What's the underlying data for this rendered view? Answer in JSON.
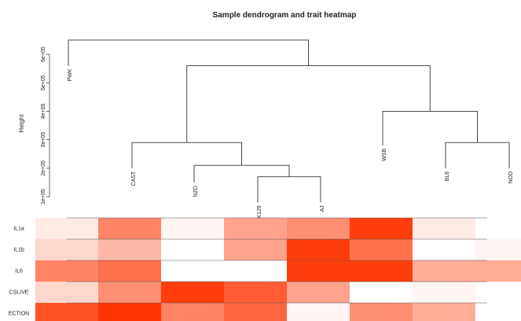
{
  "chart_data": {
    "type": "heatmap",
    "title": "Sample dendrogram and trait heatmap",
    "ylabel": "Height",
    "ylim": [
      100000,
      600000
    ],
    "yticks": [
      {
        "value": 100000,
        "label": "1e+05"
      },
      {
        "value": 200000,
        "label": "2e+05"
      },
      {
        "value": 300000,
        "label": "3e+05"
      },
      {
        "value": 400000,
        "label": "4e+05"
      },
      {
        "value": 500000,
        "label": "5e+05"
      },
      {
        "value": 600000,
        "label": "6e+05"
      }
    ],
    "samples": [
      "PWK",
      "CAST",
      "NZO",
      "X129",
      "AJ",
      "WSB",
      "BL6",
      "NOD"
    ],
    "leaf_heights": [
      560000,
      200000,
      150000,
      80000,
      80000,
      280000,
      200000,
      200000
    ],
    "merges": [
      {
        "a": 3,
        "b": 4,
        "height": 170000
      },
      {
        "a": 2,
        "b": 8,
        "height": 210000
      },
      {
        "a": 1,
        "b": 9,
        "height": 290000
      },
      {
        "a": 6,
        "b": 7,
        "height": 290000
      },
      {
        "a": 5,
        "b": 11,
        "height": 400000
      },
      {
        "a": 10,
        "b": 12,
        "height": 560000
      },
      {
        "a": 0,
        "b": 13,
        "height": 650000
      }
    ],
    "traits": [
      "IL1a",
      "IL1b",
      "IL6",
      "CSLIVE",
      "ECTION"
    ],
    "heat_colors": [
      "#ffffff",
      "#ff3300"
    ],
    "heat_values": [
      [
        0.1,
        0.6,
        0.05,
        0.45,
        0.55,
        0.95,
        0.1,
        0.0
      ],
      [
        0.2,
        0.35,
        0.0,
        0.45,
        0.95,
        0.7,
        0.0,
        0.05
      ],
      [
        0.6,
        0.7,
        0.0,
        0.0,
        0.95,
        0.95,
        0.4,
        0.4
      ],
      [
        0.2,
        0.55,
        0.95,
        0.8,
        0.45,
        0.0,
        0.05,
        0.0
      ],
      [
        0.85,
        1.0,
        0.6,
        0.75,
        0.05,
        0.55,
        0.4,
        0.0
      ]
    ]
  }
}
